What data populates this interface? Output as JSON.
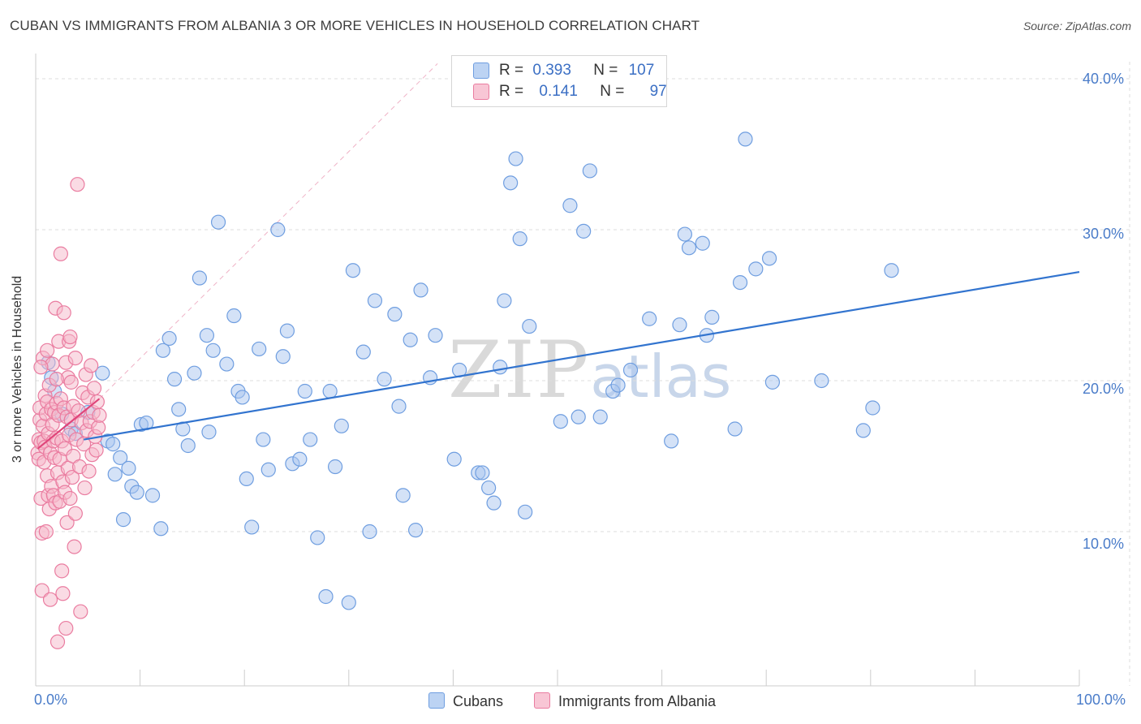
{
  "title": "CUBAN VS IMMIGRANTS FROM ALBANIA 3 OR MORE VEHICLES IN HOUSEHOLD CORRELATION CHART",
  "source": "Source: ZipAtlas.com",
  "watermark": {
    "zip": "ZIP",
    "atlas": "atlas"
  },
  "legend": {
    "rows": [
      {
        "r_label": "R =",
        "r_value": "0.393",
        "n_label": "N =",
        "n_value": "107"
      },
      {
        "r_label": "R =",
        "r_value": "0.141",
        "n_label": "N =",
        "n_value": "97"
      }
    ]
  },
  "colors": {
    "cubans_fill": "#a9c6ef",
    "cubans_stroke": "#6f9ee0",
    "cubans_line": "#3274cf",
    "albania_fill": "#f5b7c9",
    "albania_stroke": "#ea7ca0",
    "albania_line": "#e0457a",
    "grid": "#dddddd",
    "tick_text": "#4a7cc9"
  },
  "chart_data": {
    "type": "scatter",
    "title": "CUBAN VS IMMIGRANTS FROM ALBANIA 3 OR MORE VEHICLES IN HOUSEHOLD CORRELATION CHART",
    "xlabel": "",
    "ylabel": "3 or more Vehicles in Household",
    "xlim": [
      0,
      100
    ],
    "ylim": [
      0,
      41.7
    ],
    "x_tick_labels": [
      "0.0%",
      "100.0%"
    ],
    "y_ticks": [
      10,
      20,
      30,
      40
    ],
    "y_tick_labels": [
      "10.0%",
      "20.0%",
      "30.0%",
      "40.0%"
    ],
    "grid": true,
    "legend_position": "bottom-center",
    "series": [
      {
        "name": "Cubans",
        "r": 0.393,
        "n": 107,
        "trend": {
          "x": [
            4.6,
            100
          ],
          "y": [
            16.1,
            27.2
          ]
        },
        "points": [
          [
            1.2,
            21.2
          ],
          [
            1.5,
            20.2
          ],
          [
            1.8,
            19.3
          ],
          [
            2.5,
            17.8
          ],
          [
            3.4,
            16.8
          ],
          [
            3.8,
            16.5
          ],
          [
            5.0,
            17.9
          ],
          [
            6.4,
            20.5
          ],
          [
            6.9,
            16.0
          ],
          [
            7.4,
            15.8
          ],
          [
            7.6,
            13.8
          ],
          [
            8.1,
            14.9
          ],
          [
            8.4,
            10.8
          ],
          [
            8.9,
            14.2
          ],
          [
            9.2,
            13.0
          ],
          [
            9.7,
            12.6
          ],
          [
            10.1,
            17.1
          ],
          [
            10.6,
            17.2
          ],
          [
            11.2,
            12.4
          ],
          [
            12.0,
            10.2
          ],
          [
            12.2,
            22.0
          ],
          [
            12.8,
            22.8
          ],
          [
            13.3,
            20.1
          ],
          [
            13.7,
            18.1
          ],
          [
            14.1,
            16.8
          ],
          [
            14.6,
            15.7
          ],
          [
            15.2,
            20.5
          ],
          [
            15.7,
            26.8
          ],
          [
            16.4,
            23.0
          ],
          [
            16.6,
            16.6
          ],
          [
            17.0,
            22.0
          ],
          [
            17.5,
            30.5
          ],
          [
            18.3,
            21.1
          ],
          [
            19.0,
            24.3
          ],
          [
            19.4,
            19.3
          ],
          [
            19.8,
            18.9
          ],
          [
            20.2,
            13.5
          ],
          [
            20.7,
            10.3
          ],
          [
            21.4,
            22.1
          ],
          [
            21.8,
            16.1
          ],
          [
            22.3,
            14.1
          ],
          [
            23.2,
            30.0
          ],
          [
            23.7,
            21.6
          ],
          [
            24.1,
            23.3
          ],
          [
            24.6,
            14.5
          ],
          [
            25.3,
            14.8
          ],
          [
            25.8,
            19.3
          ],
          [
            26.3,
            16.1
          ],
          [
            27.0,
            9.6
          ],
          [
            27.8,
            5.7
          ],
          [
            28.2,
            19.3
          ],
          [
            28.7,
            14.3
          ],
          [
            29.3,
            17.0
          ],
          [
            30.0,
            5.3
          ],
          [
            30.4,
            27.3
          ],
          [
            31.4,
            21.9
          ],
          [
            32.0,
            10.0
          ],
          [
            32.5,
            25.3
          ],
          [
            33.4,
            20.1
          ],
          [
            34.4,
            24.4
          ],
          [
            34.8,
            18.3
          ],
          [
            35.2,
            12.4
          ],
          [
            35.9,
            22.7
          ],
          [
            36.4,
            10.1
          ],
          [
            36.9,
            26.0
          ],
          [
            37.8,
            20.2
          ],
          [
            38.3,
            23.0
          ],
          [
            40.1,
            14.8
          ],
          [
            40.6,
            20.7
          ],
          [
            42.4,
            13.9
          ],
          [
            42.8,
            13.9
          ],
          [
            43.4,
            12.9
          ],
          [
            43.9,
            11.9
          ],
          [
            44.5,
            20.9
          ],
          [
            44.9,
            25.3
          ],
          [
            45.5,
            33.1
          ],
          [
            46.0,
            34.7
          ],
          [
            46.4,
            29.4
          ],
          [
            46.9,
            11.3
          ],
          [
            47.3,
            23.6
          ],
          [
            50.3,
            17.3
          ],
          [
            51.2,
            31.6
          ],
          [
            52.0,
            17.6
          ],
          [
            52.5,
            29.9
          ],
          [
            53.1,
            33.9
          ],
          [
            54.1,
            17.6
          ],
          [
            55.3,
            19.3
          ],
          [
            55.8,
            19.7
          ],
          [
            57.0,
            20.7
          ],
          [
            58.8,
            24.1
          ],
          [
            60.9,
            16.0
          ],
          [
            61.7,
            23.7
          ],
          [
            62.2,
            29.7
          ],
          [
            62.6,
            28.8
          ],
          [
            63.9,
            29.1
          ],
          [
            64.3,
            23.0
          ],
          [
            64.8,
            24.2
          ],
          [
            67.0,
            16.8
          ],
          [
            67.5,
            26.5
          ],
          [
            68.0,
            36.0
          ],
          [
            69.0,
            27.4
          ],
          [
            70.3,
            28.1
          ],
          [
            70.6,
            19.9
          ],
          [
            75.3,
            20.0
          ],
          [
            79.3,
            16.7
          ],
          [
            80.2,
            18.2
          ],
          [
            82.0,
            27.3
          ]
        ]
      },
      {
        "name": "Immigrants from Albania",
        "r": 0.141,
        "n": 97,
        "trend": {
          "x": [
            0.2,
            6.1
          ],
          "y": [
            15.5,
            18.8
          ]
        },
        "points": [
          [
            0.2,
            15.2
          ],
          [
            0.3,
            14.8
          ],
          [
            0.3,
            16.1
          ],
          [
            0.4,
            17.4
          ],
          [
            0.4,
            18.2
          ],
          [
            0.5,
            15.9
          ],
          [
            0.5,
            12.2
          ],
          [
            0.6,
            9.9
          ],
          [
            0.6,
            6.1
          ],
          [
            0.7,
            21.5
          ],
          [
            0.7,
            17.0
          ],
          [
            0.8,
            16.0
          ],
          [
            0.8,
            14.6
          ],
          [
            0.9,
            19.0
          ],
          [
            0.9,
            15.6
          ],
          [
            1.0,
            17.8
          ],
          [
            1.0,
            10.0
          ],
          [
            1.1,
            18.6
          ],
          [
            1.1,
            13.7
          ],
          [
            1.2,
            16.5
          ],
          [
            1.2,
            12.4
          ],
          [
            1.3,
            19.7
          ],
          [
            1.3,
            11.5
          ],
          [
            1.4,
            15.2
          ],
          [
            1.4,
            5.5
          ],
          [
            1.5,
            18.1
          ],
          [
            1.5,
            13.0
          ],
          [
            1.6,
            21.1
          ],
          [
            1.6,
            17.1
          ],
          [
            1.7,
            16.0
          ],
          [
            1.7,
            12.4
          ],
          [
            1.8,
            17.9
          ],
          [
            1.8,
            14.9
          ],
          [
            1.9,
            24.8
          ],
          [
            1.9,
            11.9
          ],
          [
            2.0,
            18.5
          ],
          [
            2.0,
            16.2
          ],
          [
            2.1,
            13.9
          ],
          [
            2.1,
            2.7
          ],
          [
            2.2,
            22.6
          ],
          [
            2.2,
            17.7
          ],
          [
            2.3,
            14.8
          ],
          [
            2.3,
            12.0
          ],
          [
            2.4,
            28.4
          ],
          [
            2.4,
            18.8
          ],
          [
            2.5,
            16.0
          ],
          [
            2.5,
            7.4
          ],
          [
            2.6,
            13.3
          ],
          [
            2.6,
            5.9
          ],
          [
            2.7,
            24.5
          ],
          [
            2.7,
            18.2
          ],
          [
            2.8,
            15.5
          ],
          [
            2.8,
            12.6
          ],
          [
            2.9,
            21.2
          ],
          [
            2.9,
            3.6
          ],
          [
            3.0,
            17.6
          ],
          [
            3.0,
            10.6
          ],
          [
            3.1,
            20.2
          ],
          [
            3.1,
            14.2
          ],
          [
            3.2,
            22.6
          ],
          [
            3.2,
            16.4
          ],
          [
            3.3,
            12.2
          ],
          [
            3.4,
            19.9
          ],
          [
            3.4,
            17.4
          ],
          [
            3.5,
            13.6
          ],
          [
            3.6,
            18.3
          ],
          [
            3.6,
            15.0
          ],
          [
            3.7,
            9.0
          ],
          [
            3.8,
            21.5
          ],
          [
            3.8,
            11.2
          ],
          [
            3.9,
            16.1
          ],
          [
            4.0,
            33.0
          ],
          [
            4.1,
            18.0
          ],
          [
            4.2,
            14.3
          ],
          [
            4.3,
            4.7
          ],
          [
            4.4,
            17.2
          ],
          [
            4.5,
            19.2
          ],
          [
            4.6,
            15.8
          ],
          [
            4.7,
            12.9
          ],
          [
            4.8,
            20.4
          ],
          [
            4.9,
            16.7
          ],
          [
            5.0,
            18.9
          ],
          [
            5.1,
            14.0
          ],
          [
            5.2,
            17.3
          ],
          [
            5.3,
            21.0
          ],
          [
            5.4,
            15.1
          ],
          [
            5.5,
            17.9
          ],
          [
            5.6,
            19.5
          ],
          [
            5.7,
            16.3
          ],
          [
            5.8,
            15.4
          ],
          [
            5.9,
            18.6
          ],
          [
            6.0,
            16.9
          ],
          [
            6.1,
            17.7
          ],
          [
            0.5,
            20.9
          ],
          [
            1.1,
            22.0
          ],
          [
            2.0,
            20.1
          ],
          [
            3.3,
            22.9
          ]
        ]
      }
    ]
  },
  "axis_labels": {
    "y": "3 or more Vehicles in Household"
  },
  "bottom_legend": [
    {
      "label": "Cubans"
    },
    {
      "label": "Immigrants from Albania"
    }
  ]
}
